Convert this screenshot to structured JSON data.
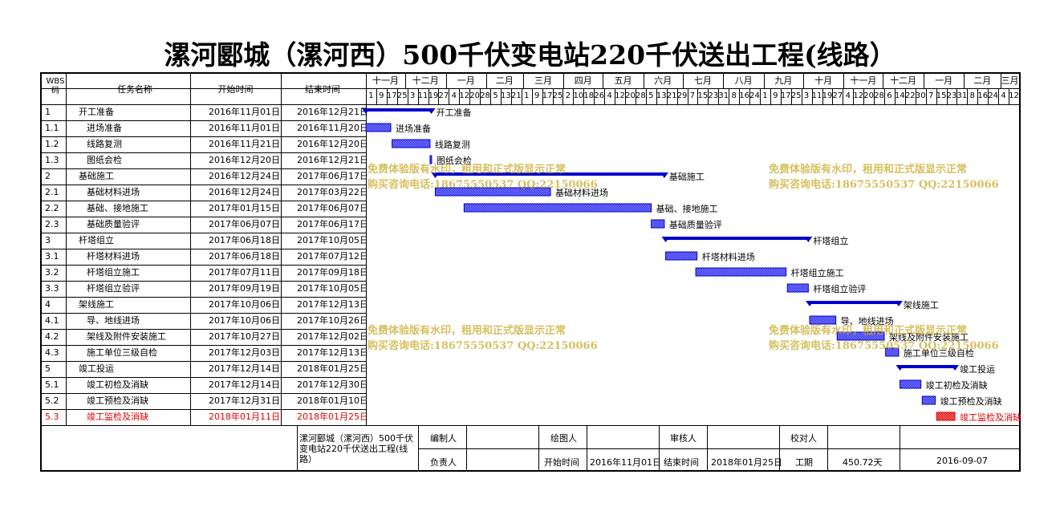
{
  "title": "漯河郾城（漯河西）500千伏变电站220千伏送出工程(线路）",
  "headers": {
    "wbs": "WBS码",
    "name": "任务名称",
    "start": "开始时间",
    "end": "结束时间"
  },
  "timeline": {
    "months": [
      "十一月",
      "十二月",
      "一月",
      "二月",
      "三月",
      "四月",
      "五月",
      "六月",
      "七月",
      "八月",
      "九月",
      "十月",
      "十一月",
      "十二月",
      "一月",
      "二月",
      "三月"
    ],
    "day_ticks": [
      "1",
      "9",
      "17",
      "25",
      "3",
      "11",
      "19",
      "27",
      "4",
      "12",
      "20",
      "28",
      "5",
      "13",
      "21",
      "1",
      "9",
      "17",
      "25",
      "2",
      "10",
      "18",
      "26",
      "4",
      "12",
      "20",
      "28",
      "5",
      "13",
      "21",
      "29",
      "7",
      "15",
      "23",
      "31",
      "8",
      "16",
      "24",
      "1",
      "9",
      "17",
      "25",
      "3",
      "11",
      "19",
      "27",
      "4",
      "12",
      "20",
      "28",
      "6",
      "14",
      "22",
      "30",
      "7",
      "15",
      "23",
      "31",
      "8",
      "16",
      "24",
      "4",
      "12"
    ]
  },
  "chart_data": {
    "type": "gantt",
    "title": "漯河郾城（漯河西）500千伏变电站220千伏送出工程(线路）",
    "x_range": [
      "2016-11-01",
      "2018-03-15"
    ],
    "tasks": [
      {
        "wbs": "1",
        "name": "开工准备",
        "start_text": "2016年11月01日",
        "end_text": "2016年12月21日",
        "start": "2016-11-01",
        "end": "2016-12-21",
        "summary": true,
        "level": 1,
        "critical": false
      },
      {
        "wbs": "1.1",
        "name": "进场准备",
        "start_text": "2016年11月01日",
        "end_text": "2016年11月20日",
        "start": "2016-11-01",
        "end": "2016-11-20",
        "summary": false,
        "level": 2,
        "critical": false
      },
      {
        "wbs": "1.2",
        "name": "线路复测",
        "start_text": "2016年11月21日",
        "end_text": "2016年12月20日",
        "start": "2016-11-21",
        "end": "2016-12-20",
        "summary": false,
        "level": 2,
        "critical": false
      },
      {
        "wbs": "1.3",
        "name": "图纸会检",
        "start_text": "2016年12月20日",
        "end_text": "2016年12月21日",
        "start": "2016-12-20",
        "end": "2016-12-21",
        "summary": false,
        "level": 2,
        "critical": false
      },
      {
        "wbs": "2",
        "name": "基础施工",
        "start_text": "2016年12月24日",
        "end_text": "2017年06月17日",
        "start": "2016-12-24",
        "end": "2017-06-17",
        "summary": true,
        "level": 1,
        "critical": false
      },
      {
        "wbs": "2.1",
        "name": "基础材料进场",
        "start_text": "2016年12月24日",
        "end_text": "2017年03月22日",
        "start": "2016-12-24",
        "end": "2017-03-22",
        "summary": false,
        "level": 2,
        "critical": false
      },
      {
        "wbs": "2.2",
        "name": "基础、接地施工",
        "start_text": "2017年01月15日",
        "end_text": "2017年06月07日",
        "start": "2017-01-15",
        "end": "2017-06-07",
        "summary": false,
        "level": 2,
        "critical": false
      },
      {
        "wbs": "2.3",
        "name": "基础质量验评",
        "start_text": "2017年06月07日",
        "end_text": "2017年06月17日",
        "start": "2017-06-07",
        "end": "2017-06-17",
        "summary": false,
        "level": 2,
        "critical": false
      },
      {
        "wbs": "3",
        "name": "杆塔组立",
        "start_text": "2017年06月18日",
        "end_text": "2017年10月05日",
        "start": "2017-06-18",
        "end": "2017-10-05",
        "summary": true,
        "level": 1,
        "critical": false
      },
      {
        "wbs": "3.1",
        "name": "杆塔材料进场",
        "start_text": "2017年06月18日",
        "end_text": "2017年07月12日",
        "start": "2017-06-18",
        "end": "2017-07-12",
        "summary": false,
        "level": 2,
        "critical": false
      },
      {
        "wbs": "3.2",
        "name": "杆塔组立施工",
        "start_text": "2017年07月11日",
        "end_text": "2017年09月18日",
        "start": "2017-07-11",
        "end": "2017-09-18",
        "summary": false,
        "level": 2,
        "critical": false
      },
      {
        "wbs": "3.3",
        "name": "杆塔组立验评",
        "start_text": "2017年09月19日",
        "end_text": "2017年10月05日",
        "start": "2017-09-19",
        "end": "2017-10-05",
        "summary": false,
        "level": 2,
        "critical": false
      },
      {
        "wbs": "4",
        "name": "架线施工",
        "start_text": "2017年10月06日",
        "end_text": "2017年12月13日",
        "start": "2017-10-06",
        "end": "2017-12-13",
        "summary": true,
        "level": 1,
        "critical": false
      },
      {
        "wbs": "4.1",
        "name": "导、地线进场",
        "start_text": "2017年10月06日",
        "end_text": "2017年10月26日",
        "start": "2017-10-06",
        "end": "2017-10-26",
        "summary": false,
        "level": 2,
        "critical": false
      },
      {
        "wbs": "4.2",
        "name": "架线及附件安装施工",
        "start_text": "2017年10月27日",
        "end_text": "2017年12月02日",
        "start": "2017-10-27",
        "end": "2017-12-02",
        "summary": false,
        "level": 2,
        "critical": false
      },
      {
        "wbs": "4.3",
        "name": "施工单位三级自检",
        "start_text": "2017年12月03日",
        "end_text": "2017年12月13日",
        "start": "2017-12-03",
        "end": "2017-12-13",
        "summary": false,
        "level": 2,
        "critical": false
      },
      {
        "wbs": "5",
        "name": "竣工投运",
        "start_text": "2017年12月14日",
        "end_text": "2018年01月25日",
        "start": "2017-12-14",
        "end": "2018-01-25",
        "summary": true,
        "level": 1,
        "critical": false
      },
      {
        "wbs": "5.1",
        "name": "竣工初检及消缺",
        "start_text": "2017年12月14日",
        "end_text": "2017年12月30日",
        "start": "2017-12-14",
        "end": "2017-12-30",
        "summary": false,
        "level": 2,
        "critical": false
      },
      {
        "wbs": "5.2",
        "name": "竣工预检及消缺",
        "start_text": "2017年12月31日",
        "end_text": "2018年01月10日",
        "start": "2017-12-31",
        "end": "2018-01-10",
        "summary": false,
        "level": 2,
        "critical": false
      },
      {
        "wbs": "5.3",
        "name": "竣工监检及消缺",
        "start_text": "2018年01月11日",
        "end_text": "2018年01月25日",
        "start": "2018-01-11",
        "end": "2018-01-25",
        "summary": false,
        "level": 2,
        "critical": true
      }
    ]
  },
  "watermark": {
    "line1": "免费体验版有水印，租用和正式版显示正常",
    "line2": "购买咨询电话:18675550537 QQ:22150066"
  },
  "footer": {
    "project": "漯河郾城（漯河西）500千伏变电站220千伏送出工程(线路）",
    "compiler_label": "编制人",
    "drawer_label": "绘图人",
    "reviewer_label": "审核人",
    "checker_label": "校对人",
    "owner_label": "负责人",
    "start_label": "开始时间",
    "start_value": "2016年11月01日",
    "end_label": "结束时间",
    "end_value": "2018年01月25日",
    "duration_label": "工期",
    "duration_value": "450.72天",
    "date_value": "2016-09-07"
  },
  "colors": {
    "bar": "#0000cc",
    "bar_fill": "#3333ee",
    "critical": "#e00000",
    "watermark": "#c8aa28"
  }
}
